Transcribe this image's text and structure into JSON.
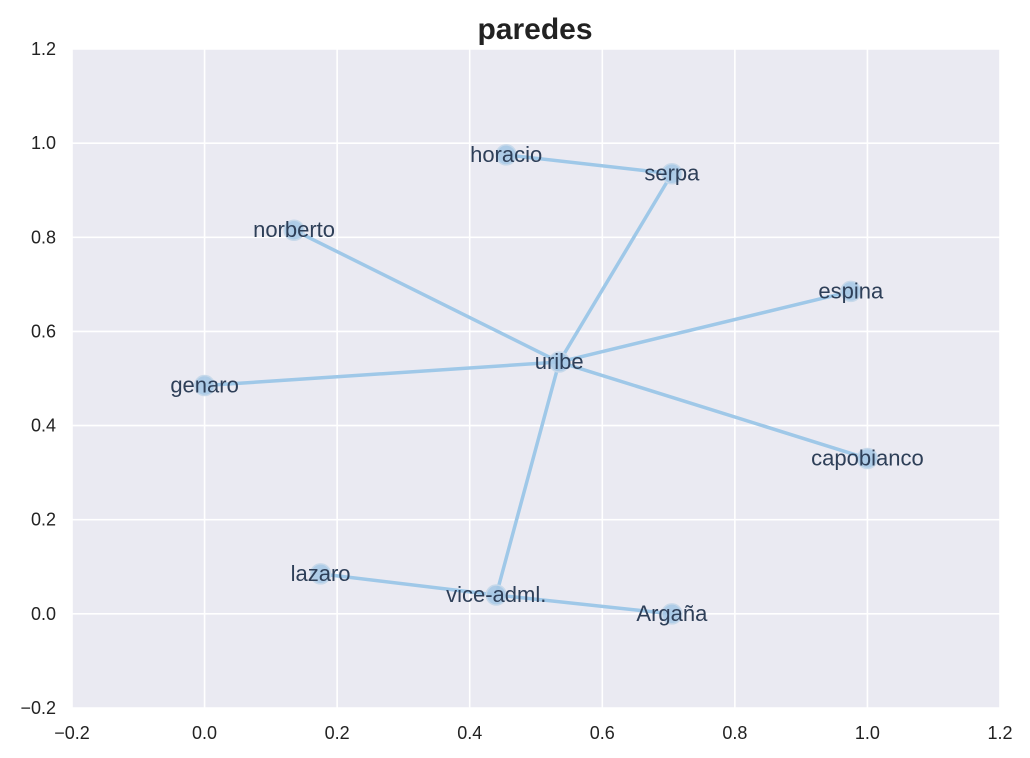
{
  "chart_data": {
    "type": "scatter",
    "subtype": "network-graph",
    "title": "paredes",
    "xlabel": "",
    "ylabel": "",
    "xlim": [
      -0.2,
      1.2
    ],
    "ylim": [
      -0.2,
      1.2
    ],
    "x_ticks": [
      -0.2,
      0.0,
      0.2,
      0.4,
      0.6,
      0.8,
      1.0,
      1.2
    ],
    "x_tick_labels": [
      "−0.2",
      "0.0",
      "0.2",
      "0.4",
      "0.6",
      "0.8",
      "1.0",
      "1.2"
    ],
    "y_ticks": [
      -0.2,
      0.0,
      0.2,
      0.4,
      0.6,
      0.8,
      1.0,
      1.2
    ],
    "y_tick_labels": [
      "−0.2",
      "0.0",
      "0.2",
      "0.4",
      "0.6",
      "0.8",
      "1.0",
      "1.2"
    ],
    "grid": true,
    "nodes": [
      {
        "name": "horacio",
        "x": 0.455,
        "y": 0.975
      },
      {
        "name": "serpa",
        "x": 0.705,
        "y": 0.935
      },
      {
        "name": "norberto",
        "x": 0.135,
        "y": 0.815
      },
      {
        "name": "espina",
        "x": 0.975,
        "y": 0.685
      },
      {
        "name": "uribe",
        "x": 0.535,
        "y": 0.535
      },
      {
        "name": "genaro",
        "x": 0.0,
        "y": 0.485
      },
      {
        "name": "capobianco",
        "x": 1.0,
        "y": 0.33
      },
      {
        "name": "lazaro",
        "x": 0.175,
        "y": 0.085
      },
      {
        "name": "vice-adml.",
        "x": 0.44,
        "y": 0.04
      },
      {
        "name": "Argaña",
        "x": 0.705,
        "y": 0.0
      }
    ],
    "edges": [
      [
        "horacio",
        "serpa"
      ],
      [
        "serpa",
        "uribe"
      ],
      [
        "norberto",
        "uribe"
      ],
      [
        "espina",
        "uribe"
      ],
      [
        "genaro",
        "uribe"
      ],
      [
        "capobianco",
        "uribe"
      ],
      [
        "vice-adml.",
        "uribe"
      ],
      [
        "lazaro",
        "vice-adml."
      ],
      [
        "vice-adml.",
        "Argaña"
      ]
    ],
    "colors": {
      "background": "#eaeaf2",
      "grid": "#ffffff",
      "edge": "#9fc8e8",
      "node_fill": "#a7c9e6",
      "node_stroke": "#c8d9ea",
      "label": "#2e3f58"
    }
  }
}
